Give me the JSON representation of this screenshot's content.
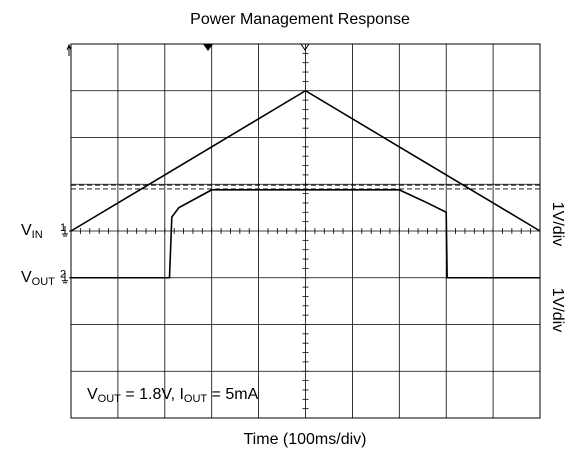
{
  "chart_data": {
    "type": "line",
    "title": "Power Management Response",
    "xlabel": "Time (100ms/div)",
    "scale_labels": [
      "1V/div",
      "1V/div"
    ],
    "xlim": [
      0,
      10
    ],
    "ylim": [
      0,
      8
    ],
    "xticks": [
      0,
      1,
      2,
      3,
      4,
      5,
      6,
      7,
      8,
      9,
      10
    ],
    "yticks": [
      0,
      1,
      2,
      3,
      4,
      5,
      6,
      7,
      8
    ],
    "grid": true,
    "series": [
      {
        "label": {
          "text": "V",
          "sub": "IN"
        },
        "marker": "1",
        "ground": 4,
        "color": "#000000",
        "x": [
          0,
          5,
          10
        ],
        "values": [
          4,
          7,
          4
        ]
      },
      {
        "label": {
          "text": "V",
          "sub": "OUT"
        },
        "marker": "2",
        "ground": 3,
        "color": "#000000",
        "x": [
          0,
          2.1,
          2.15,
          2.3,
          3,
          7,
          7.6,
          8,
          8.02,
          10
        ],
        "values": [
          3,
          3,
          4.3,
          4.5,
          4.88,
          4.88,
          4.6,
          4.4,
          3,
          3
        ]
      }
    ],
    "reference_lines": [
      4.98,
      4.9
    ],
    "annotation": [
      {
        "text": "V",
        "sub": false
      },
      {
        "text": "OUT",
        "sub": true
      },
      {
        "text": " = 1.8V, I",
        "sub": false
      },
      {
        "text": "OUT",
        "sub": true
      },
      {
        "text": " = 5mA",
        "sub": false
      }
    ]
  }
}
